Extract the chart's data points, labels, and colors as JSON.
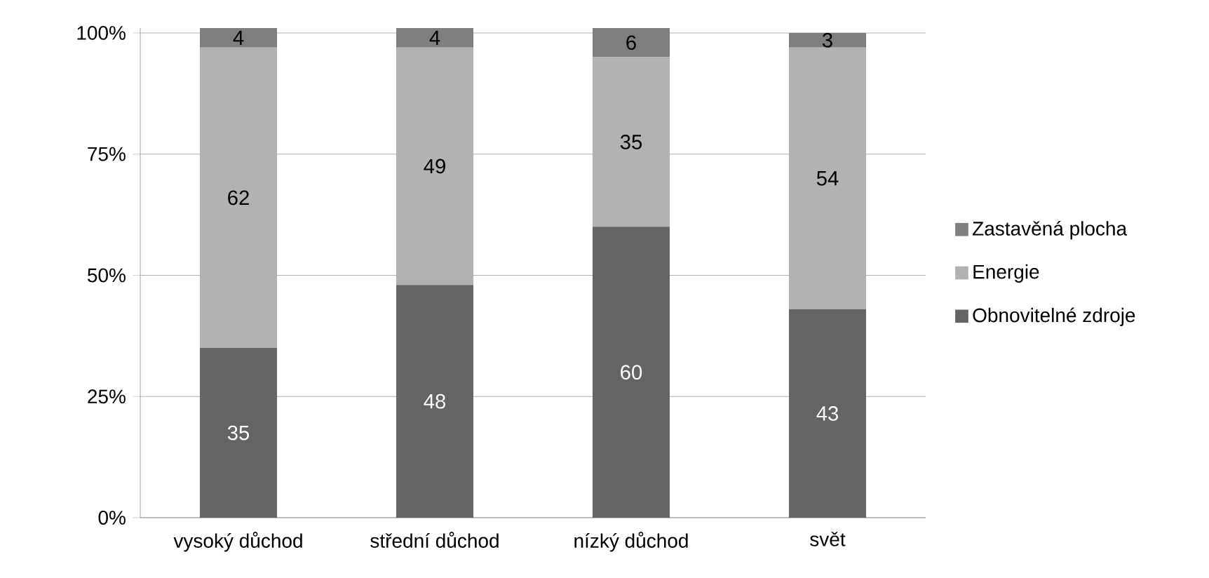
{
  "chart_data": {
    "type": "bar",
    "stacked": true,
    "categories": [
      "vysoký důchod",
      "střední důchod",
      "nízký důchod",
      "svět"
    ],
    "series": [
      {
        "name": "Obnovitelné zdroje",
        "color": "#646464",
        "values": [
          35,
          48,
          60,
          43
        ]
      },
      {
        "name": "Energie",
        "color": "#b2b2b2",
        "values": [
          62,
          49,
          35,
          54
        ]
      },
      {
        "name": "Zastavěná plocha",
        "color": "#7f7f7f",
        "values": [
          4,
          4,
          6,
          3
        ]
      }
    ],
    "ylim": [
      0,
      101
    ],
    "yticks": [
      {
        "value": 0,
        "label": "0%"
      },
      {
        "value": 25,
        "label": "25%"
      },
      {
        "value": 50,
        "label": "50%"
      },
      {
        "value": 75,
        "label": "75%"
      },
      {
        "value": 100,
        "label": "100%"
      }
    ],
    "grid": "y",
    "legend": "right",
    "data_labels": true
  }
}
